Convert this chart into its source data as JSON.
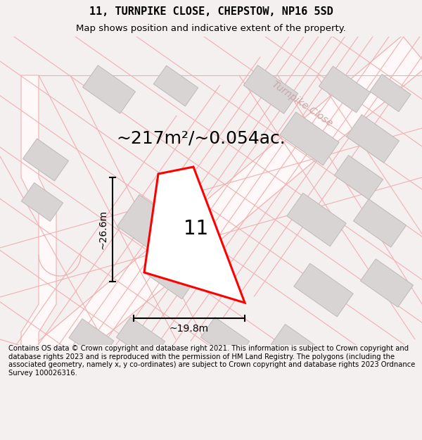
{
  "title_line1": "11, TURNPIKE CLOSE, CHEPSTOW, NP16 5SD",
  "title_line2": "Map shows position and indicative extent of the property.",
  "area_text": "~217m²/~0.054ac.",
  "label_width": "~19.8m",
  "label_height": "~26.6m",
  "plot_number": "11",
  "footer_text": "Contains OS data © Crown copyright and database right 2021. This information is subject to Crown copyright and database rights 2023 and is reproduced with the permission of HM Land Registry. The polygons (including the associated geometry, namely x, y co-ordinates) are subject to Crown copyright and database rights 2023 Ordnance Survey 100026316.",
  "bg_color": "#f5f0f0",
  "map_bg": "#ffffff",
  "road_color": "#f0b8b8",
  "road_lw": 0.9,
  "building_face": "#d8d4d4",
  "building_edge": "#c0b8b8",
  "plot_edge": "#ff0000",
  "plot_face": "#ffffff",
  "street_label": "Turnpike Close",
  "title_fontsize": 11,
  "subtitle_fontsize": 9.5,
  "footer_fontsize": 7.2,
  "area_fontsize": 18,
  "dim_fontsize": 10,
  "num_fontsize": 20
}
